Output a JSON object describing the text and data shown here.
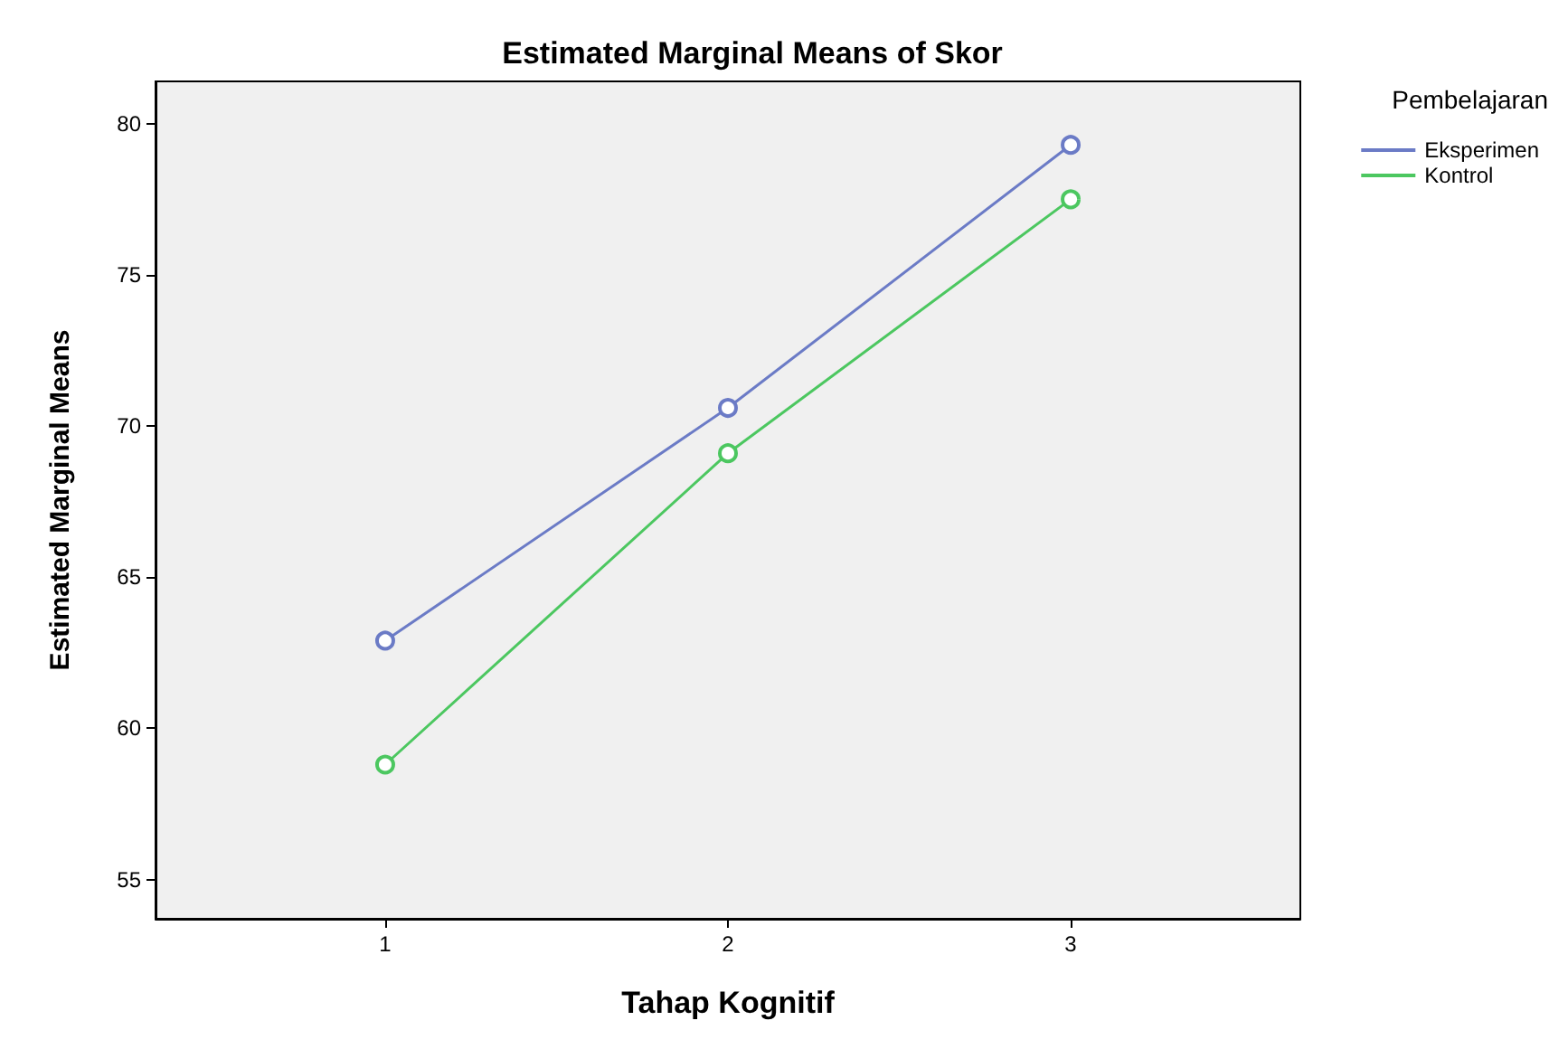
{
  "chart_data": {
    "type": "line",
    "title": "Estimated Marginal Means of Skor",
    "xlabel": "Tahap Kognitif",
    "ylabel": "Estimated Marginal Means",
    "legend_title": "Pembelajaran",
    "x": [
      1,
      2,
      3
    ],
    "series": [
      {
        "name": "Eksperimen",
        "color": "#6b7bc6",
        "values": [
          62.9,
          70.6,
          79.3
        ]
      },
      {
        "name": "Kontrol",
        "color": "#4cc760",
        "values": [
          58.8,
          69.1,
          77.5
        ]
      }
    ],
    "xlim": [
      0.33,
      3.67
    ],
    "xticks": [
      1,
      2,
      3
    ],
    "ylim": [
      53.7,
      81.4
    ],
    "yticks": [
      55,
      60,
      65,
      70,
      75,
      80
    ],
    "grid": false,
    "legend": "top right",
    "marker": "circle",
    "line_style": "solid"
  }
}
